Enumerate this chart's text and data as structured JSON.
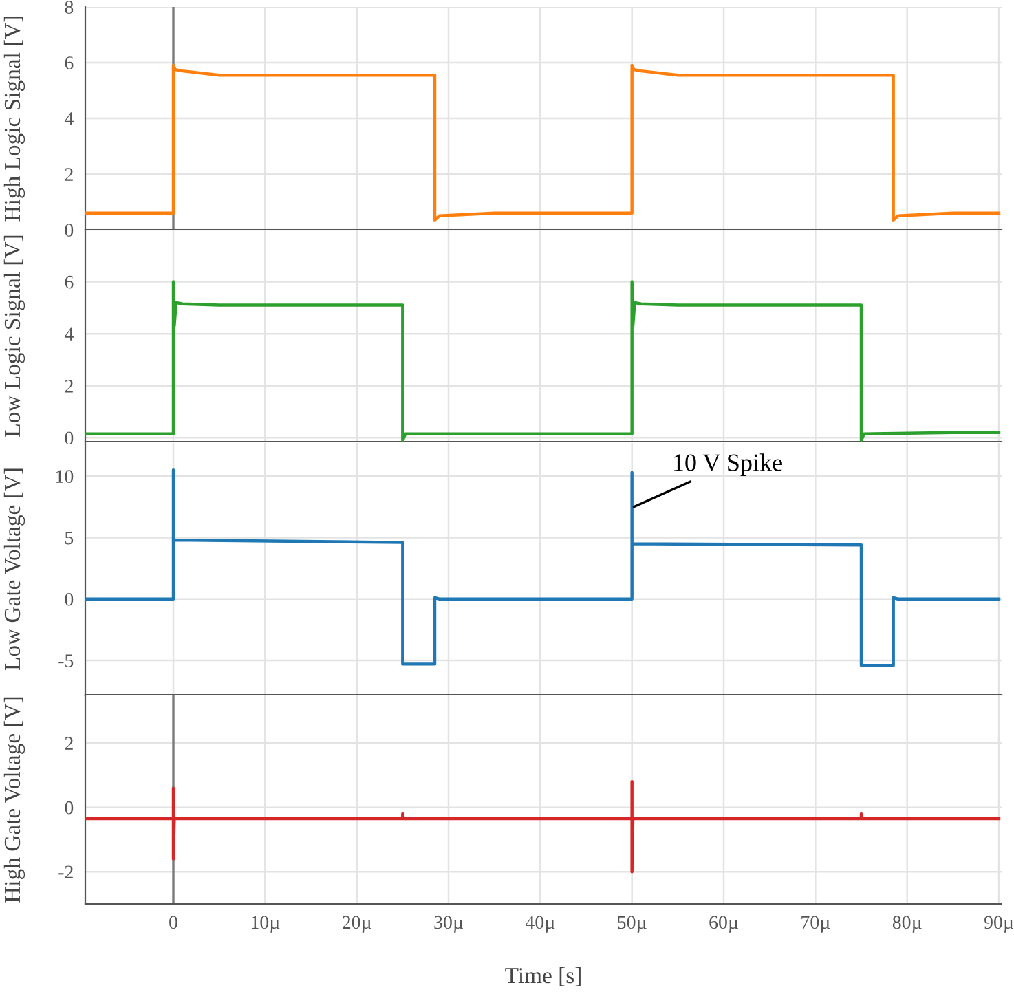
{
  "chart_data": [
    {
      "type": "line",
      "ylabel": "High Logic Signal [V]",
      "xlim": [
        -9.6,
        90.3
      ],
      "ylim": [
        0,
        8
      ],
      "yticks": [
        0,
        2,
        4,
        6,
        8
      ],
      "xticks": [
        {
          "value": 0,
          "label": null
        },
        {
          "value": 10,
          "label": null
        },
        {
          "value": 20,
          "label": null
        },
        {
          "value": 30,
          "label": null
        },
        {
          "value": 40,
          "label": null
        },
        {
          "value": 50,
          "label": null
        },
        {
          "value": 60,
          "label": null
        },
        {
          "value": 70,
          "label": null
        },
        {
          "value": 80,
          "label": null
        },
        {
          "value": 90,
          "label": null
        }
      ],
      "tick_labels": "y",
      "grid": true,
      "legend": false,
      "ref_lines": [
        {
          "axis": "x",
          "value": 0,
          "color": "#777777"
        }
      ],
      "series": [
        {
          "color": "#ff7f0e",
          "x": [
            -9.6,
            0,
            0,
            0.2,
            1,
            5,
            28.5,
            28.5,
            29,
            35,
            50,
            50,
            50.2,
            51,
            55,
            78.5,
            78.5,
            79,
            85,
            90
          ],
          "values": [
            0.6,
            0.6,
            5.9,
            5.75,
            5.7,
            5.55,
            5.55,
            0.35,
            0.5,
            0.6,
            0.6,
            5.9,
            5.75,
            5.7,
            5.55,
            5.55,
            0.35,
            0.5,
            0.6,
            0.6
          ]
        }
      ]
    },
    {
      "type": "line",
      "ylabel": "Low Logic Signal [V]",
      "xlim": [
        -9.6,
        90.3
      ],
      "ylim": [
        -0.15,
        8
      ],
      "yticks": [
        0,
        2,
        4,
        6,
        {
          "value": 8,
          "label": null
        }
      ],
      "xticks": [
        {
          "value": 0,
          "label": null
        },
        {
          "value": 10,
          "label": null
        },
        {
          "value": 20,
          "label": null
        },
        {
          "value": 30,
          "label": null
        },
        {
          "value": 40,
          "label": null
        },
        {
          "value": 50,
          "label": null
        },
        {
          "value": 60,
          "label": null
        },
        {
          "value": 70,
          "label": null
        },
        {
          "value": 80,
          "label": null
        },
        {
          "value": 90,
          "label": null
        }
      ],
      "tick_labels": "y",
      "grid": true,
      "legend": false,
      "series": [
        {
          "color": "#2ca02c",
          "x": [
            -9.6,
            0,
            0,
            0.1,
            0.3,
            1,
            5,
            25,
            25,
            25.3,
            35,
            50,
            50,
            50.1,
            50.3,
            51,
            55,
            75,
            75,
            75.3,
            85,
            90
          ],
          "values": [
            0.15,
            0.15,
            6.0,
            4.3,
            5.2,
            5.15,
            5.1,
            5.1,
            -0.1,
            0.15,
            0.15,
            0.15,
            6.0,
            4.3,
            5.2,
            5.15,
            5.1,
            5.1,
            -0.1,
            0.15,
            0.2,
            0.2
          ]
        }
      ]
    },
    {
      "type": "line",
      "ylabel": "Low Gate Voltage [V]",
      "xlim": [
        -9.6,
        90.3
      ],
      "ylim": [
        -7.8,
        12.7
      ],
      "yticks": [
        -5,
        0,
        5,
        10
      ],
      "xticks": [
        {
          "value": 0,
          "label": null
        },
        {
          "value": 10,
          "label": null
        },
        {
          "value": 20,
          "label": null
        },
        {
          "value": 30,
          "label": null
        },
        {
          "value": 40,
          "label": null
        },
        {
          "value": 50,
          "label": null
        },
        {
          "value": 60,
          "label": null
        },
        {
          "value": 70,
          "label": null
        },
        {
          "value": 80,
          "label": null
        },
        {
          "value": 90,
          "label": null
        }
      ],
      "tick_labels": "y",
      "grid": true,
      "legend": false,
      "annotations": [
        {
          "text": "10 V Spike",
          "x": 50.2,
          "y": 7.5
        }
      ],
      "series": [
        {
          "color": "#1f77b4",
          "x": [
            -9.6,
            0,
            0,
            0,
            25,
            25,
            28.5,
            28.5,
            29,
            35,
            50,
            50,
            50,
            75,
            75,
            78.5,
            78.5,
            79,
            90
          ],
          "values": [
            0,
            0,
            10.5,
            4.8,
            4.6,
            -5.3,
            -5.3,
            0.1,
            0,
            0,
            0,
            10.3,
            4.5,
            4.4,
            -5.4,
            -5.4,
            0.1,
            0,
            0
          ]
        }
      ]
    },
    {
      "type": "line",
      "ylabel": "High Gate Voltage [V]",
      "xlabel": "Time [s]",
      "xlim": [
        -9.6,
        90.3
      ],
      "ylim": [
        -3,
        3.5
      ],
      "yticks": [
        -2,
        0,
        2
      ],
      "xticks": [
        0,
        {
          "value": 10,
          "label": "10µ"
        },
        {
          "value": 20,
          "label": "20µ"
        },
        {
          "value": 30,
          "label": "30µ"
        },
        {
          "value": 40,
          "label": "40µ"
        },
        {
          "value": 50,
          "label": "50µ"
        },
        {
          "value": 60,
          "label": "60µ"
        },
        {
          "value": 70,
          "label": "70µ"
        },
        {
          "value": 80,
          "label": "80µ"
        },
        {
          "value": 90,
          "label": "90µ"
        }
      ],
      "grid": true,
      "legend": false,
      "ref_lines": [
        {
          "axis": "x",
          "value": 0,
          "color": "#777777"
        }
      ],
      "series": [
        {
          "color": "#d62728",
          "x": [
            -9.6,
            0,
            0,
            0,
            0.1,
            25,
            25,
            25.1,
            50,
            50,
            50,
            50.1,
            75,
            75,
            75.1,
            90
          ],
          "values": [
            -0.35,
            -0.35,
            0.6,
            -1.6,
            -0.35,
            -0.35,
            -0.2,
            -0.35,
            -0.35,
            0.8,
            -2.0,
            -0.35,
            -0.35,
            -0.2,
            -0.35,
            -0.35
          ]
        }
      ]
    }
  ]
}
